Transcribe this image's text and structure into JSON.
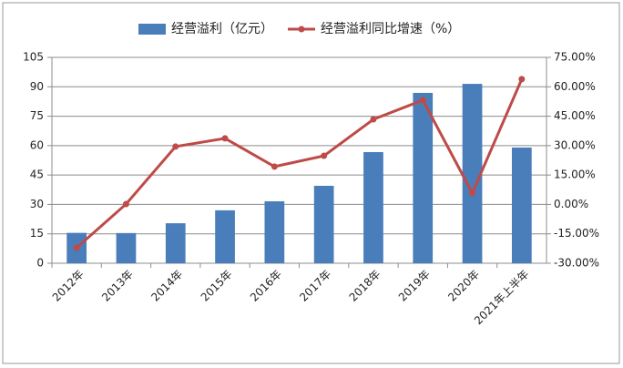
{
  "chart_data": {
    "type": "bar-line",
    "categories": [
      "2012年",
      "2013年",
      "2014年",
      "2015年",
      "2016年",
      "2017年",
      "2018年",
      "2019年",
      "2020年",
      "2021年上半年"
    ],
    "series": [
      {
        "name": "经营溢利（亿元）",
        "type": "bar",
        "color": "#4a7ebb",
        "values": [
          15.5,
          15.4,
          20.4,
          27,
          31.6,
          39.5,
          56.7,
          86.9,
          91.5,
          59
        ]
      },
      {
        "name": "经营溢利同比增速（%）",
        "type": "line",
        "axis": "y2",
        "color": "#be4b48",
        "values": [
          -22.1,
          0.2,
          29.5,
          33.7,
          19.3,
          24.8,
          43.4,
          53.2,
          5.8,
          63.9
        ]
      }
    ],
    "ylim": [
      0,
      105
    ],
    "yticks": [
      0,
      15,
      30,
      45,
      60,
      75,
      90,
      105
    ],
    "y2lim": [
      -30,
      75
    ],
    "y2ticks": [
      {
        "value": -30,
        "label": "-30.00%"
      },
      {
        "value": -15,
        "label": "-15.00%"
      },
      {
        "value": 0,
        "label": "0.00%"
      },
      {
        "value": 15,
        "label": "15.00%"
      },
      {
        "value": 30,
        "label": "30.00%"
      },
      {
        "value": 45,
        "label": "45.00%"
      },
      {
        "value": 60,
        "label": "60.00%"
      },
      {
        "value": 75,
        "label": "75.00%"
      }
    ],
    "grid": true
  }
}
